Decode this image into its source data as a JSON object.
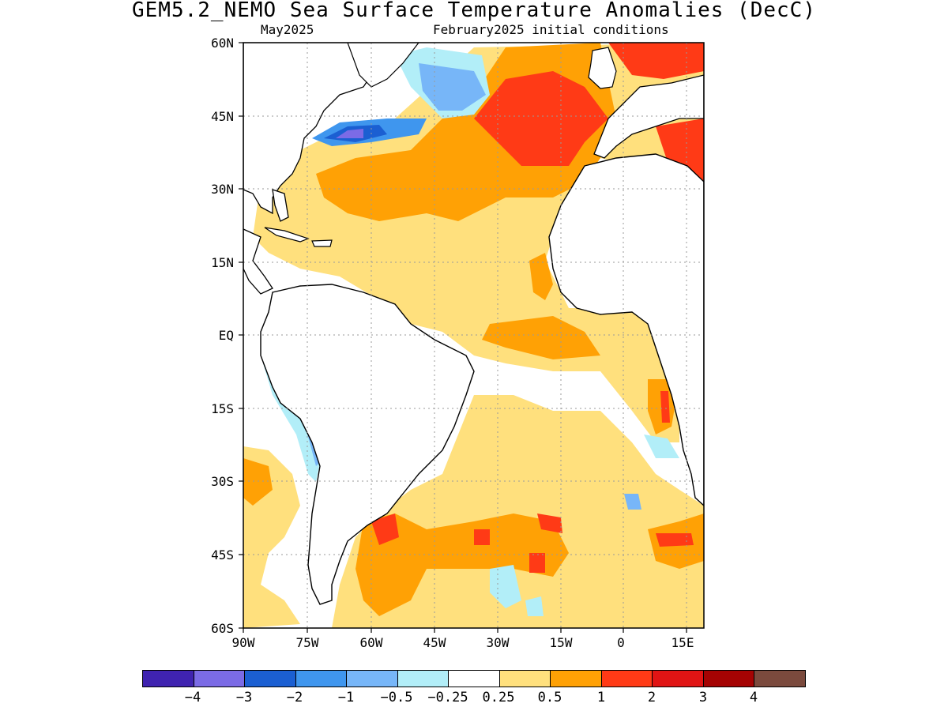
{
  "title": "GEM5.2_NEMO Sea Surface Temperature Anomalies (DecC)",
  "subtitle_left": "May2025",
  "subtitle_right": "February2025 initial conditions",
  "lat_labels": [
    "60N",
    "45N",
    "30N",
    "15N",
    "EQ",
    "15S",
    "30S",
    "45S",
    "60S"
  ],
  "lon_labels": [
    "90W",
    "75W",
    "60W",
    "45W",
    "30W",
    "15W",
    "0",
    "15E"
  ],
  "colorbar": {
    "colors": [
      "#3f23b0",
      "#7b6be6",
      "#1b5fd2",
      "#3f96ee",
      "#77b6f8",
      "#b2eef8",
      "#ffffff",
      "#ffe07d",
      "#ffa105",
      "#ff3a16",
      "#e01414",
      "#a50303",
      "#7b4a3d"
    ],
    "labels": [
      "−4",
      "−3",
      "−2",
      "−1",
      "−0.5",
      "−0.25",
      "0.25",
      "0.5",
      "1",
      "2",
      "3",
      "4"
    ]
  }
}
